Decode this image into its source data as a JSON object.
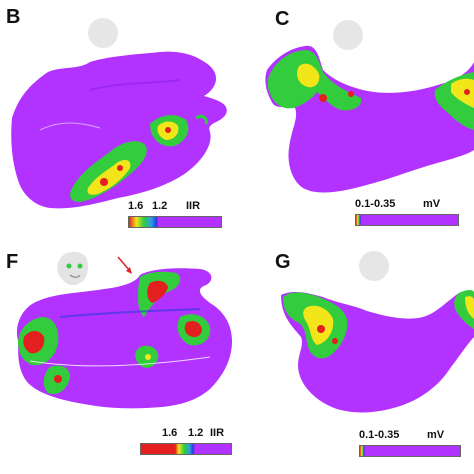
{
  "panels": [
    {
      "letter": "B",
      "scale_low": "1.6",
      "scale_high": "1.2",
      "unit": "IIR"
    },
    {
      "letter": "C",
      "range": "0.1-0.35",
      "unit": "mV"
    },
    {
      "letter": "F",
      "scale_low": "1.6",
      "scale_high": "1.2",
      "unit": "IIR"
    },
    {
      "letter": "G",
      "range": "0.1-0.35",
      "unit": "mV"
    }
  ],
  "colors": {
    "purple": "#b233ff",
    "green": "#32cc3c",
    "yellow": "#f2e51a",
    "red": "#e41f1f",
    "blue": "#2a3be0",
    "annotation_arrow": "#e0202a"
  },
  "icons": [
    "head-orientation-icon",
    "annotation-arrow-icon"
  ]
}
